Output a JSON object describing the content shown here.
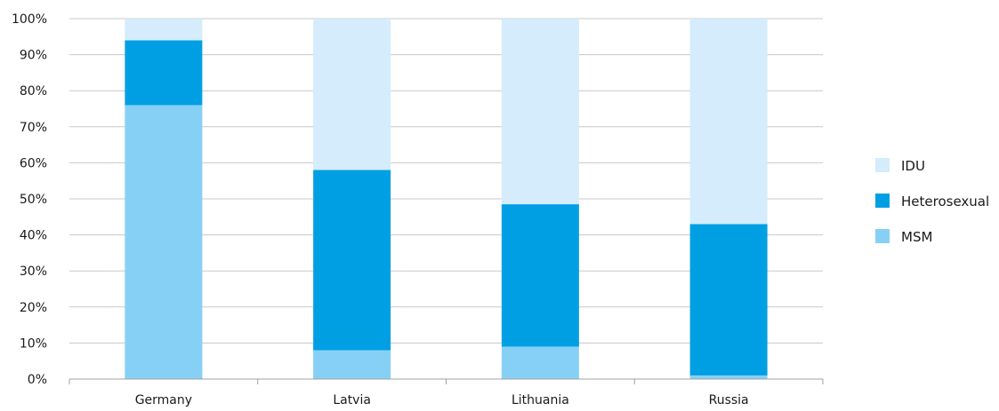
{
  "chart_data": {
    "type": "bar",
    "stacked": true,
    "categories": [
      "Germany",
      "Latvia",
      "Lithuania",
      "Russia"
    ],
    "series": [
      {
        "name": "MSM",
        "values": [
          76,
          8,
          9,
          1
        ],
        "color": "#86d0f5"
      },
      {
        "name": "Heterosexual",
        "values": [
          18,
          50,
          39.5,
          42
        ],
        "color": "#009fe3"
      },
      {
        "name": "IDU",
        "values": [
          6,
          42,
          51.5,
          57
        ],
        "color": "#d4ecfb"
      }
    ],
    "legend_order": [
      "IDU",
      "Heterosexual",
      "MSM"
    ],
    "ylim": [
      0,
      100
    ],
    "yticks": [
      0,
      10,
      20,
      30,
      40,
      50,
      60,
      70,
      80,
      90,
      100
    ],
    "ytick_labels": [
      "0%",
      "10%",
      "20%",
      "30%",
      "40%",
      "50%",
      "60%",
      "70%",
      "80%",
      "90%",
      "100%"
    ],
    "grid": true,
    "legend_position": "right",
    "colors": {
      "grid": "#c8c8c8",
      "axis": "#a0a0a0"
    }
  }
}
